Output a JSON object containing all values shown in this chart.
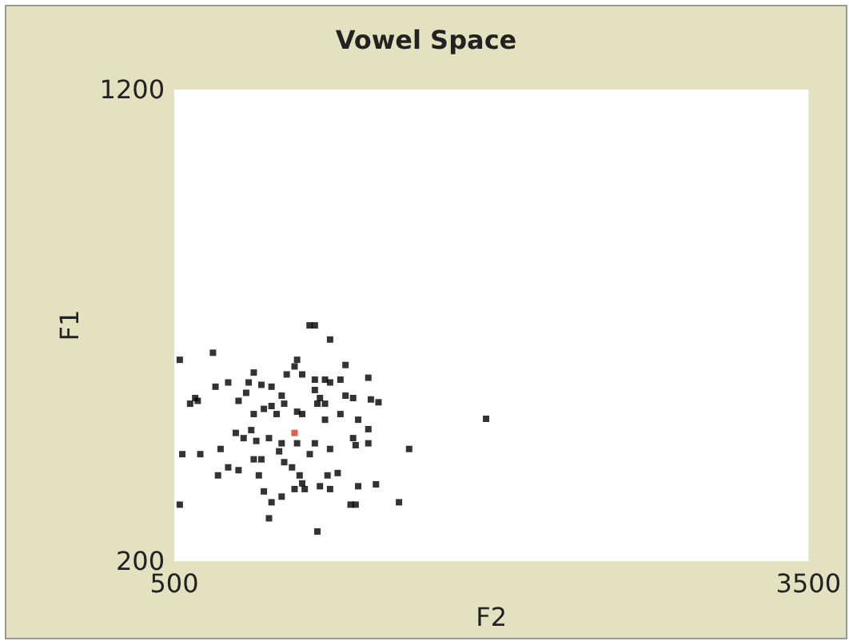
{
  "chart_data": {
    "type": "scatter",
    "title": "Vowel Space",
    "xlabel": "F2",
    "ylabel": "F1",
    "xlim": [
      500,
      3500
    ],
    "ylim": [
      200,
      1200
    ],
    "xticks": [
      500,
      3500
    ],
    "yticks": [
      200,
      1200
    ],
    "grid": false,
    "marker": "square",
    "series": [
      {
        "color": "#000000",
        "x": [
          1140,
          1165,
          1237,
          526,
          683,
          1081,
          1069,
          1032,
          1105,
          876,
          1310,
          695,
          755,
          852,
          912,
          960,
          1165,
          1213,
          1237,
          1286,
          1418,
          599,
          575,
          611,
          804,
          840,
          1008,
          1020,
          1165,
          1189,
          1213,
          1177,
          1310,
          1346,
          1430,
          1466,
          876,
          924,
          960,
          984,
          1081,
          1105,
          1213,
          1286,
          1370,
          1418,
          791,
          828,
          864,
          888,
          948,
          1008,
          1081,
          1165,
          1237,
          1346,
          1358,
          1418,
          1611,
          538,
          623,
          719,
          876,
          912,
          996,
          1020,
          1141,
          755,
          707,
          804,
          900,
          1057,
          1093,
          1105,
          1225,
          1273,
          1189,
          1237,
          1370,
          1454,
          924,
          960,
          1008,
          1069,
          1117,
          1334,
          1358,
          1563,
          526,
          948,
          1177,
          1975
        ],
        "values": [
          700,
          700,
          670,
          627,
          642,
          627,
          613,
          596,
          596,
          600,
          616,
          570,
          579,
          579,
          574,
          570,
          585,
          585,
          579,
          585,
          589,
          546,
          534,
          540,
          540,
          557,
          551,
          534,
          563,
          546,
          534,
          534,
          551,
          546,
          543,
          537,
          512,
          523,
          529,
          512,
          517,
          512,
          500,
          512,
          500,
          480,
          472,
          461,
          478,
          455,
          461,
          450,
          450,
          450,
          438,
          461,
          446,
          450,
          438,
          427,
          427,
          438,
          416,
          416,
          433,
          410,
          427,
          399,
          382,
          393,
          382,
          399,
          382,
          365,
          382,
          387,
          359,
          353,
          359,
          363,
          348,
          325,
          337,
          353,
          353,
          320,
          320,
          325,
          320,
          291,
          263,
          502
        ]
      },
      {
        "color": "#d9341f",
        "x": [
          1069
        ],
        "values": [
          472
        ]
      }
    ]
  }
}
